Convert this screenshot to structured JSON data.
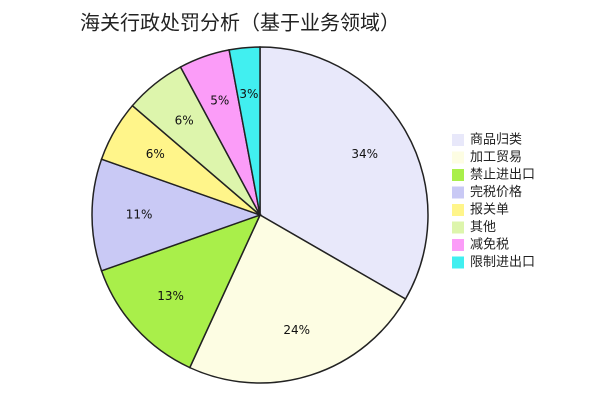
{
  "chart_data": {
    "type": "pie",
    "title": "海关行政处罚分析（基于业务领域）",
    "categories": [
      "商品归类",
      "加工贸易",
      "禁止进出口",
      "完税价格",
      "报关单",
      "其他",
      "减免税",
      "限制进出口"
    ],
    "values": [
      34,
      24,
      13,
      11,
      6,
      6,
      5,
      3
    ],
    "value_labels": [
      "34%",
      "24%",
      "13%",
      "11%",
      "6%",
      "6%",
      "5%",
      "3%"
    ],
    "colors": [
      "#e8e8fa",
      "#fdfde3",
      "#a9ef4a",
      "#c9c9f5",
      "#fff58a",
      "#ddf5ac",
      "#fb9cf8",
      "#41eff0"
    ],
    "legend": "right"
  }
}
